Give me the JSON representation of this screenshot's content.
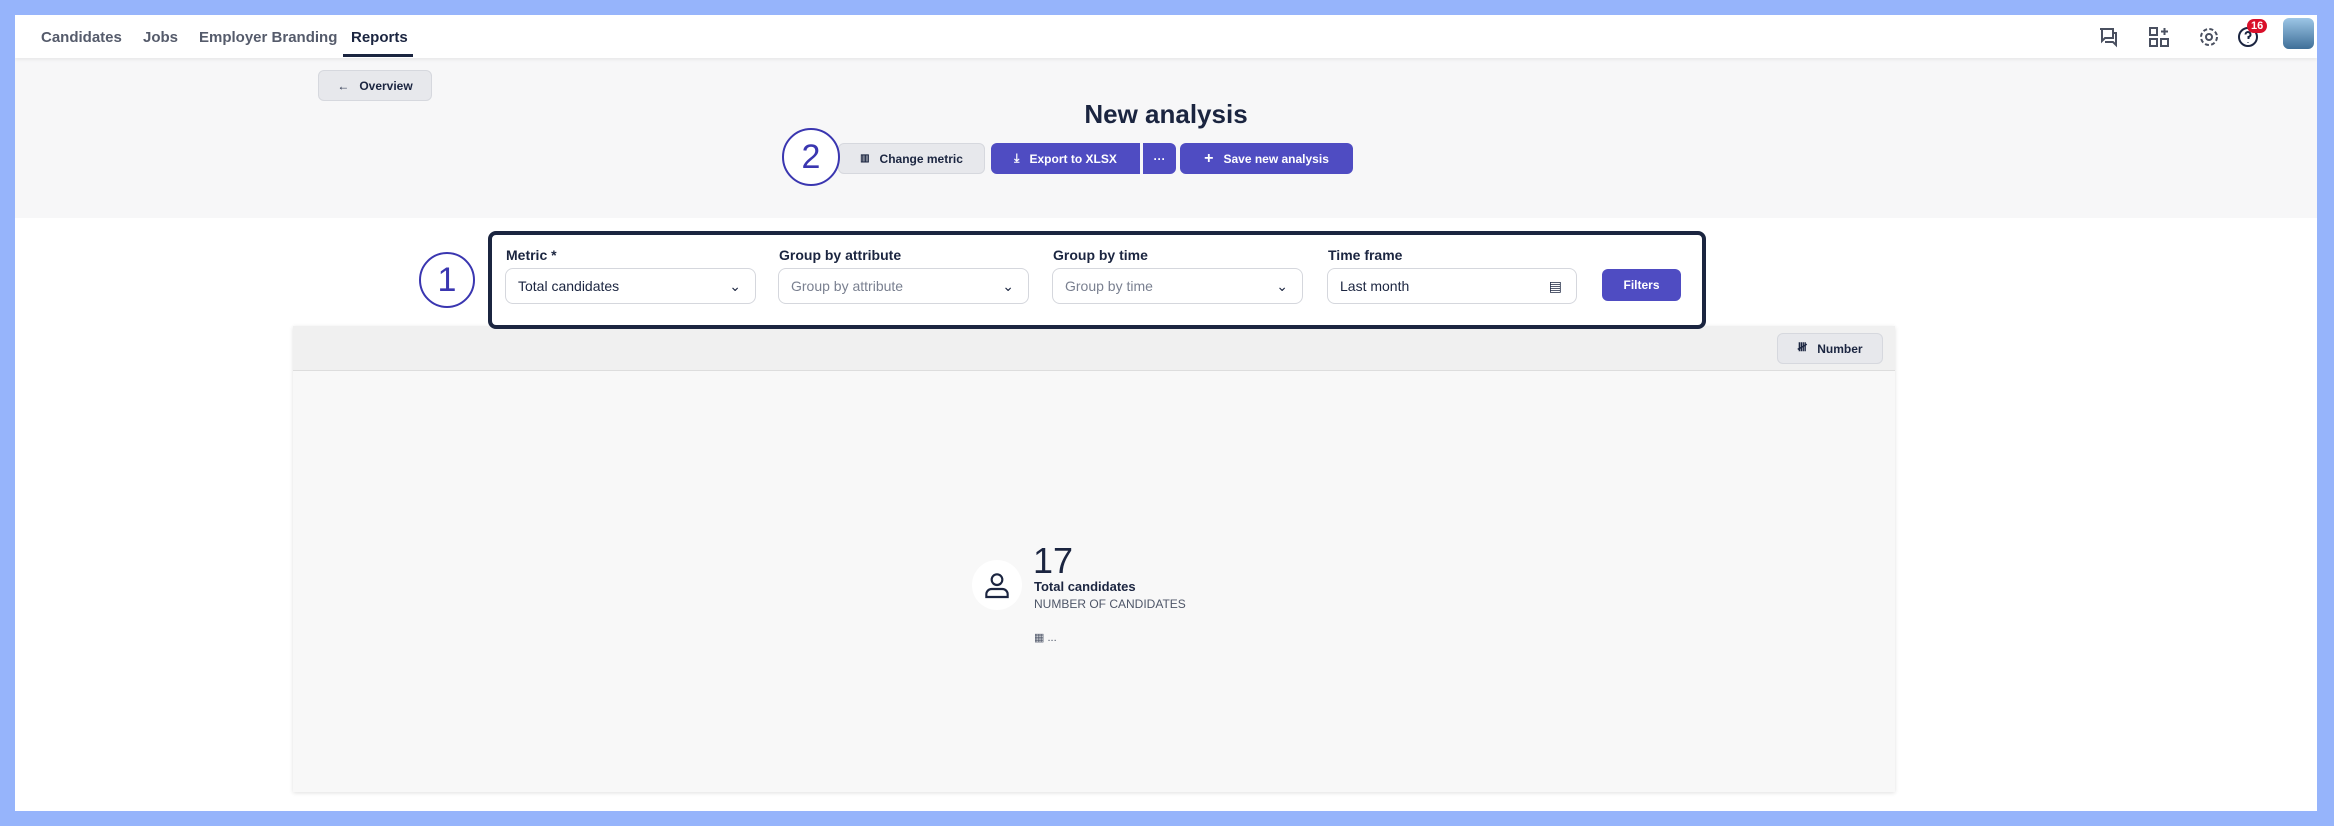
{
  "nav": {
    "tabs": [
      {
        "label": "Candidates"
      },
      {
        "label": "Jobs"
      },
      {
        "label": "Employer Branding"
      },
      {
        "label": "Reports",
        "active": true
      }
    ],
    "icons": [
      "chat-icon",
      "apps-add-icon",
      "gear-icon",
      "help-icon"
    ],
    "help_badge": "16"
  },
  "header": {
    "back_label": "Overview",
    "title": "New analysis",
    "change_metric_label": "Change metric",
    "export_label": "Export to XLSX",
    "more_label": "···",
    "save_label": "Save new analysis"
  },
  "annotations": {
    "one": "1",
    "two": "2"
  },
  "filters": {
    "metric": {
      "label": "Metric *",
      "value": "Total candidates"
    },
    "group_attr": {
      "label": "Group by attribute",
      "placeholder": "Group by attribute"
    },
    "group_time": {
      "label": "Group by time",
      "placeholder": "Group by time"
    },
    "time_frame": {
      "label": "Time frame",
      "value": "Last month"
    },
    "filters_label": "Filters"
  },
  "view": {
    "type_label": "Number"
  },
  "widget": {
    "value": "17",
    "title": "Total candidates",
    "subtitle": "NUMBER OF CANDIDATES",
    "date_range": "..."
  },
  "colors": {
    "accent": "#4f4cc2",
    "navy": "#1b2540",
    "badge": "#d9102a"
  }
}
